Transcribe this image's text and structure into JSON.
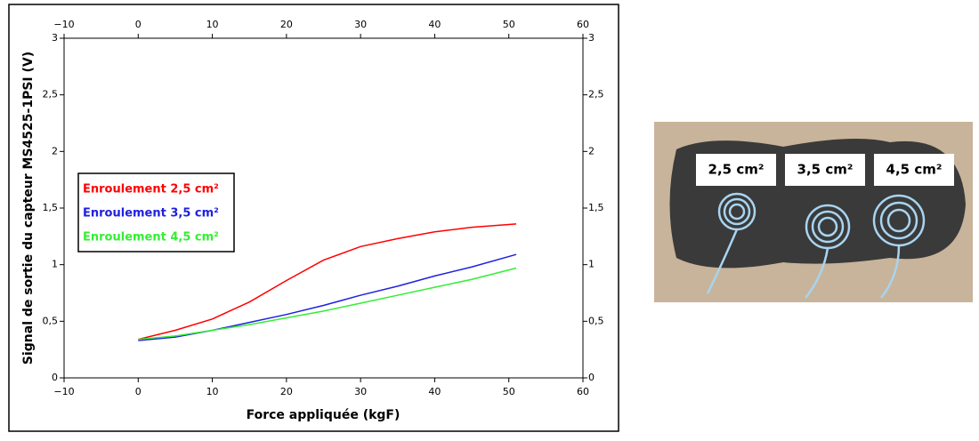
{
  "chart_data": {
    "type": "line",
    "xlabel": "Force appliquée (kgF)",
    "ylabel": "Signal de sortie du capteur MS4525-1PSI (V)",
    "x": [
      0,
      5,
      10,
      15,
      20,
      25,
      30,
      35,
      40,
      45,
      51
    ],
    "series": [
      {
        "name": "Enroulement 2,5 cm²",
        "color": "#ff0000",
        "values": [
          0.34,
          0.42,
          0.52,
          0.67,
          0.86,
          1.04,
          1.16,
          1.23,
          1.29,
          1.33,
          1.36
        ]
      },
      {
        "name": "Enroulement 3,5 cm²",
        "color": "#2020e0",
        "values": [
          0.33,
          0.36,
          0.42,
          0.49,
          0.56,
          0.64,
          0.73,
          0.81,
          0.9,
          0.98,
          1.09
        ]
      },
      {
        "name": "Enroulement 4,5 cm²",
        "color": "#33ee33",
        "values": [
          0.34,
          0.37,
          0.42,
          0.47,
          0.53,
          0.59,
          0.66,
          0.73,
          0.8,
          0.87,
          0.97
        ]
      }
    ],
    "xlim": [
      -10,
      60
    ],
    "xticks": [
      {
        "value": -10,
        "label": "−10"
      },
      0,
      10,
      20,
      30,
      40,
      50,
      60
    ],
    "ylim": [
      0,
      3
    ],
    "yticks": [
      0,
      {
        "value": 0.5,
        "label": "0,5"
      },
      1,
      {
        "value": 1.5,
        "label": "1,5"
      },
      2,
      {
        "value": 2.5,
        "label": "2,5"
      },
      3
    ],
    "legend": "left"
  },
  "photo": {
    "labels": [
      "2,5 cm²",
      "3,5 cm²",
      "4,5 cm²"
    ]
  }
}
